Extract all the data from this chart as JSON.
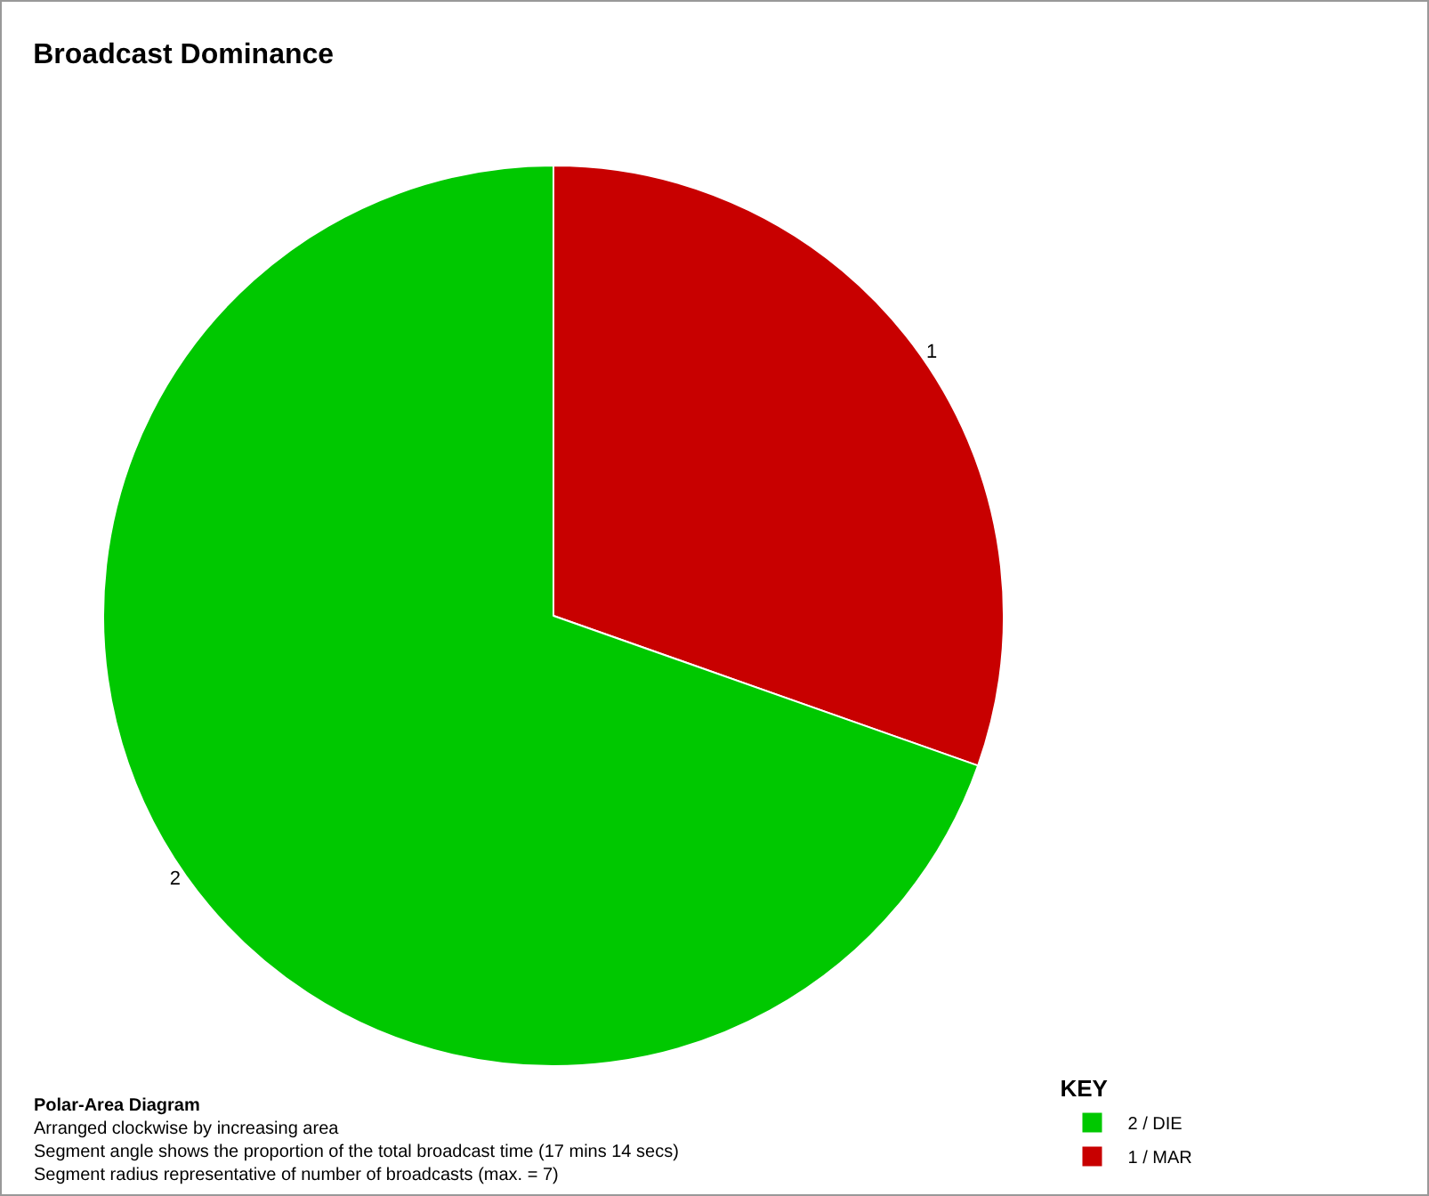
{
  "chart_data": {
    "type": "pie",
    "title": "Broadcast Dominance",
    "categories": [
      "1 / MAR",
      "2 / DIE"
    ],
    "values": [
      30.4,
      69.6
    ],
    "colors": [
      "#c80000",
      "#00c800"
    ],
    "legend": "bottom right",
    "legend_title": "KEY",
    "annotations": [
      {
        "text": "1",
        "x": "1 / MAR"
      },
      {
        "text": "2",
        "x": "2 / DIE"
      },
      "Polar-Area Diagram",
      "Arranged clockwise by increasing area",
      "Segment angle shows the proportion of the total broadcast time (17 mins 14 secs)",
      "Segment radius representative of number of broadcasts (max. = 7)"
    ]
  }
}
